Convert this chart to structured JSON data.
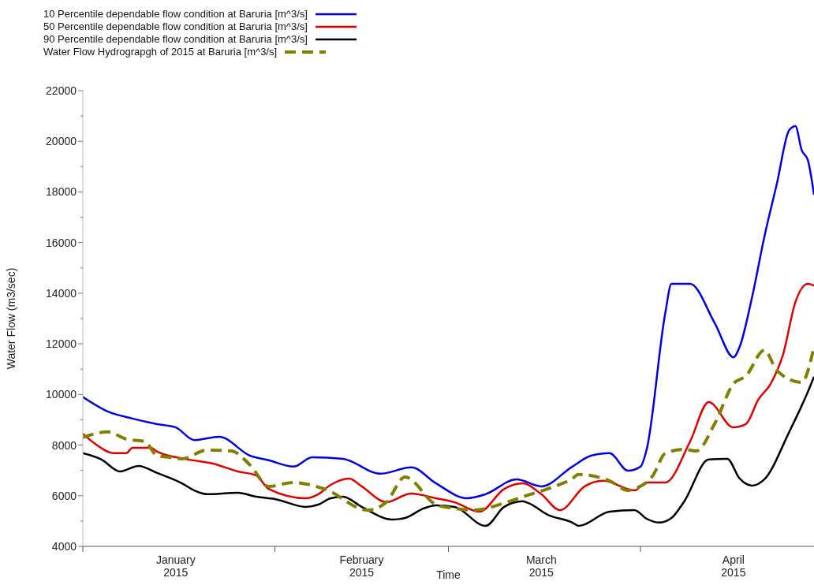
{
  "chart_data": {
    "type": "line",
    "xlabel": "Time",
    "ylabel": "Water Flow (m3/sec)",
    "legend": "top left",
    "xlim": [
      "2015-01-01",
      "2015-04-29"
    ],
    "ylim": [
      4000,
      22000
    ],
    "xticks": [
      {
        "value": "2015-01-01",
        "label": null
      },
      {
        "value": "2015-01-16",
        "label": "January 2015"
      },
      {
        "value": "2015-02-01",
        "label": null
      },
      {
        "value": "2015-02-15",
        "label": "February 2015"
      },
      {
        "value": "2015-03-01",
        "label": null
      },
      {
        "value": "2015-03-16",
        "label": "March 2015"
      },
      {
        "value": "2015-04-01",
        "label": null
      },
      {
        "value": "2015-04-16",
        "label": "April 2015"
      }
    ],
    "yticks": [
      4000,
      {
        "value": 5000,
        "label": null
      },
      6000,
      {
        "value": 7000,
        "label": null
      },
      8000,
      {
        "value": 9000,
        "label": null
      },
      10000,
      {
        "value": 11000,
        "label": null
      },
      12000,
      {
        "value": 13000,
        "label": null
      },
      14000,
      {
        "value": 15000,
        "label": null
      },
      16000,
      {
        "value": 17000,
        "label": null
      },
      18000,
      {
        "value": 19000,
        "label": null
      },
      20000,
      {
        "value": 21000,
        "label": null
      },
      22000
    ],
    "series": [
      {
        "name": "10 Percentile dependable flow condition at Baruria [m^3/s]",
        "color": "#0000e0",
        "line_style": "solid",
        "x": [
          "2015-01-01",
          "2015-01-05",
          "2015-01-09",
          "2015-01-13",
          "2015-01-16",
          "2015-01-19",
          "2015-01-23",
          "2015-01-28",
          "2015-01-31",
          "2015-02-04",
          "2015-02-07",
          "2015-02-12",
          "2015-02-18",
          "2015-02-23",
          "2015-02-27",
          "2015-03-04",
          "2015-03-07",
          "2015-03-12",
          "2015-03-16",
          "2015-03-21",
          "2015-03-24",
          "2015-03-27",
          "2015-03-30",
          "2015-04-01",
          "2015-04-02",
          "2015-04-05",
          "2015-04-06",
          "2015-04-09",
          "2015-04-13",
          "2015-04-16",
          "2015-04-17",
          "2015-04-19",
          "2015-04-21",
          "2015-04-23",
          "2015-04-25",
          "2015-04-26",
          "2015-04-27",
          "2015-04-28",
          "2015-04-29"
        ],
        "values": [
          9900,
          9330,
          9050,
          8830,
          8700,
          8200,
          8330,
          7580,
          7400,
          7150,
          7520,
          7460,
          6870,
          7120,
          6490,
          5900,
          6060,
          6650,
          6370,
          7150,
          7580,
          7680,
          6990,
          7150,
          7830,
          13220,
          14370,
          14370,
          12810,
          11470,
          11880,
          13840,
          16240,
          18320,
          20440,
          20600,
          19660,
          19260,
          17890
        ]
      },
      {
        "name": "50 Percentile dependable flow condition at Baruria [m^3/s]",
        "color": "#e00000",
        "line_style": "solid",
        "x": [
          "2015-01-01",
          "2015-01-03",
          "2015-01-06",
          "2015-01-08",
          "2015-01-09",
          "2015-01-12",
          "2015-01-13",
          "2015-01-18",
          "2015-01-22",
          "2015-01-26",
          "2015-01-29",
          "2015-01-31",
          "2015-02-06",
          "2015-02-08",
          "2015-02-10",
          "2015-02-13",
          "2015-02-15",
          "2015-02-19",
          "2015-02-23",
          "2015-02-27",
          "2015-03-02",
          "2015-03-06",
          "2015-03-10",
          "2015-03-13",
          "2015-03-16",
          "2015-03-19",
          "2015-03-23",
          "2015-03-26",
          "2015-03-31",
          "2015-04-02",
          "2015-04-05",
          "2015-04-09",
          "2015-04-12",
          "2015-04-16",
          "2015-04-18",
          "2015-04-20",
          "2015-04-22",
          "2015-04-24",
          "2015-04-26",
          "2015-04-28",
          "2015-04-29"
        ],
        "values": [
          8450,
          8050,
          7680,
          7680,
          7890,
          7890,
          7740,
          7430,
          7270,
          6960,
          6800,
          6270,
          5900,
          6060,
          6430,
          6680,
          6370,
          5750,
          6090,
          5900,
          5740,
          5370,
          6270,
          6490,
          6060,
          5430,
          6370,
          6590,
          6210,
          6520,
          6520,
          8140,
          9700,
          8700,
          8830,
          9790,
          10420,
          11570,
          13650,
          14370,
          14300
        ]
      },
      {
        "name": "90 Percentile dependable flow condition at Baruria [m^3/s]",
        "color": "#000000",
        "line_style": "solid",
        "x": [
          "2015-01-01",
          "2015-01-04",
          "2015-01-07",
          "2015-01-10",
          "2015-01-13",
          "2015-01-17",
          "2015-01-19",
          "2015-01-21",
          "2015-01-26",
          "2015-01-29",
          "2015-02-01",
          "2015-02-06",
          "2015-02-08",
          "2015-02-10",
          "2015-02-12",
          "2015-02-15",
          "2015-02-20",
          "2015-02-22",
          "2015-02-25",
          "2015-02-27",
          "2015-03-02",
          "2015-03-07",
          "2015-03-10",
          "2015-03-13",
          "2015-03-14",
          "2015-03-17",
          "2015-03-21",
          "2015-03-22",
          "2015-03-27",
          "2015-03-31",
          "2015-04-02",
          "2015-04-04",
          "2015-04-06",
          "2015-04-08",
          "2015-04-12",
          "2015-04-15",
          "2015-04-17",
          "2015-04-19",
          "2015-04-21",
          "2015-04-25",
          "2015-04-28",
          "2015-04-29"
        ],
        "values": [
          7680,
          7430,
          6960,
          7180,
          6900,
          6490,
          6210,
          6060,
          6120,
          5960,
          5870,
          5560,
          5650,
          5900,
          5960,
          5560,
          5060,
          5120,
          5500,
          5620,
          5560,
          4810,
          5560,
          5780,
          5700,
          5250,
          4940,
          4810,
          5370,
          5430,
          5090,
          4940,
          5120,
          5750,
          7430,
          7460,
          6680,
          6400,
          6650,
          8520,
          10100,
          10700
        ]
      },
      {
        "name": "Water Flow Hydrograpgh of 2015 at Baruria [m^3/s]",
        "color": "#808000",
        "line_style": "dashed",
        "x": [
          "2015-01-01",
          "2015-01-05",
          "2015-01-08",
          "2015-01-11",
          "2015-01-13",
          "2015-01-15",
          "2015-01-17",
          "2015-01-21",
          "2015-01-25",
          "2015-01-28",
          "2015-01-31",
          "2015-02-04",
          "2015-02-09",
          "2015-02-16",
          "2015-02-19",
          "2015-02-22",
          "2015-02-27",
          "2015-03-02",
          "2015-03-05",
          "2015-03-10",
          "2015-03-13",
          "2015-03-17",
          "2015-03-21",
          "2015-03-22",
          "2015-03-27",
          "2015-03-30",
          "2015-03-31",
          "2015-04-03",
          "2015-04-05",
          "2015-04-08",
          "2015-04-10",
          "2015-04-13",
          "2015-04-16",
          "2015-04-18",
          "2015-04-21",
          "2015-04-23",
          "2015-04-27",
          "2015-04-29"
        ],
        "values": [
          8300,
          8520,
          8240,
          8140,
          7580,
          7520,
          7460,
          7800,
          7770,
          7210,
          6370,
          6520,
          6270,
          5430,
          5750,
          6740,
          5650,
          5500,
          5430,
          5710,
          5960,
          6270,
          6680,
          6840,
          6590,
          6210,
          6270,
          6800,
          7680,
          7830,
          7770,
          8860,
          10420,
          10730,
          11750,
          10950,
          10480,
          11880
        ]
      }
    ]
  }
}
